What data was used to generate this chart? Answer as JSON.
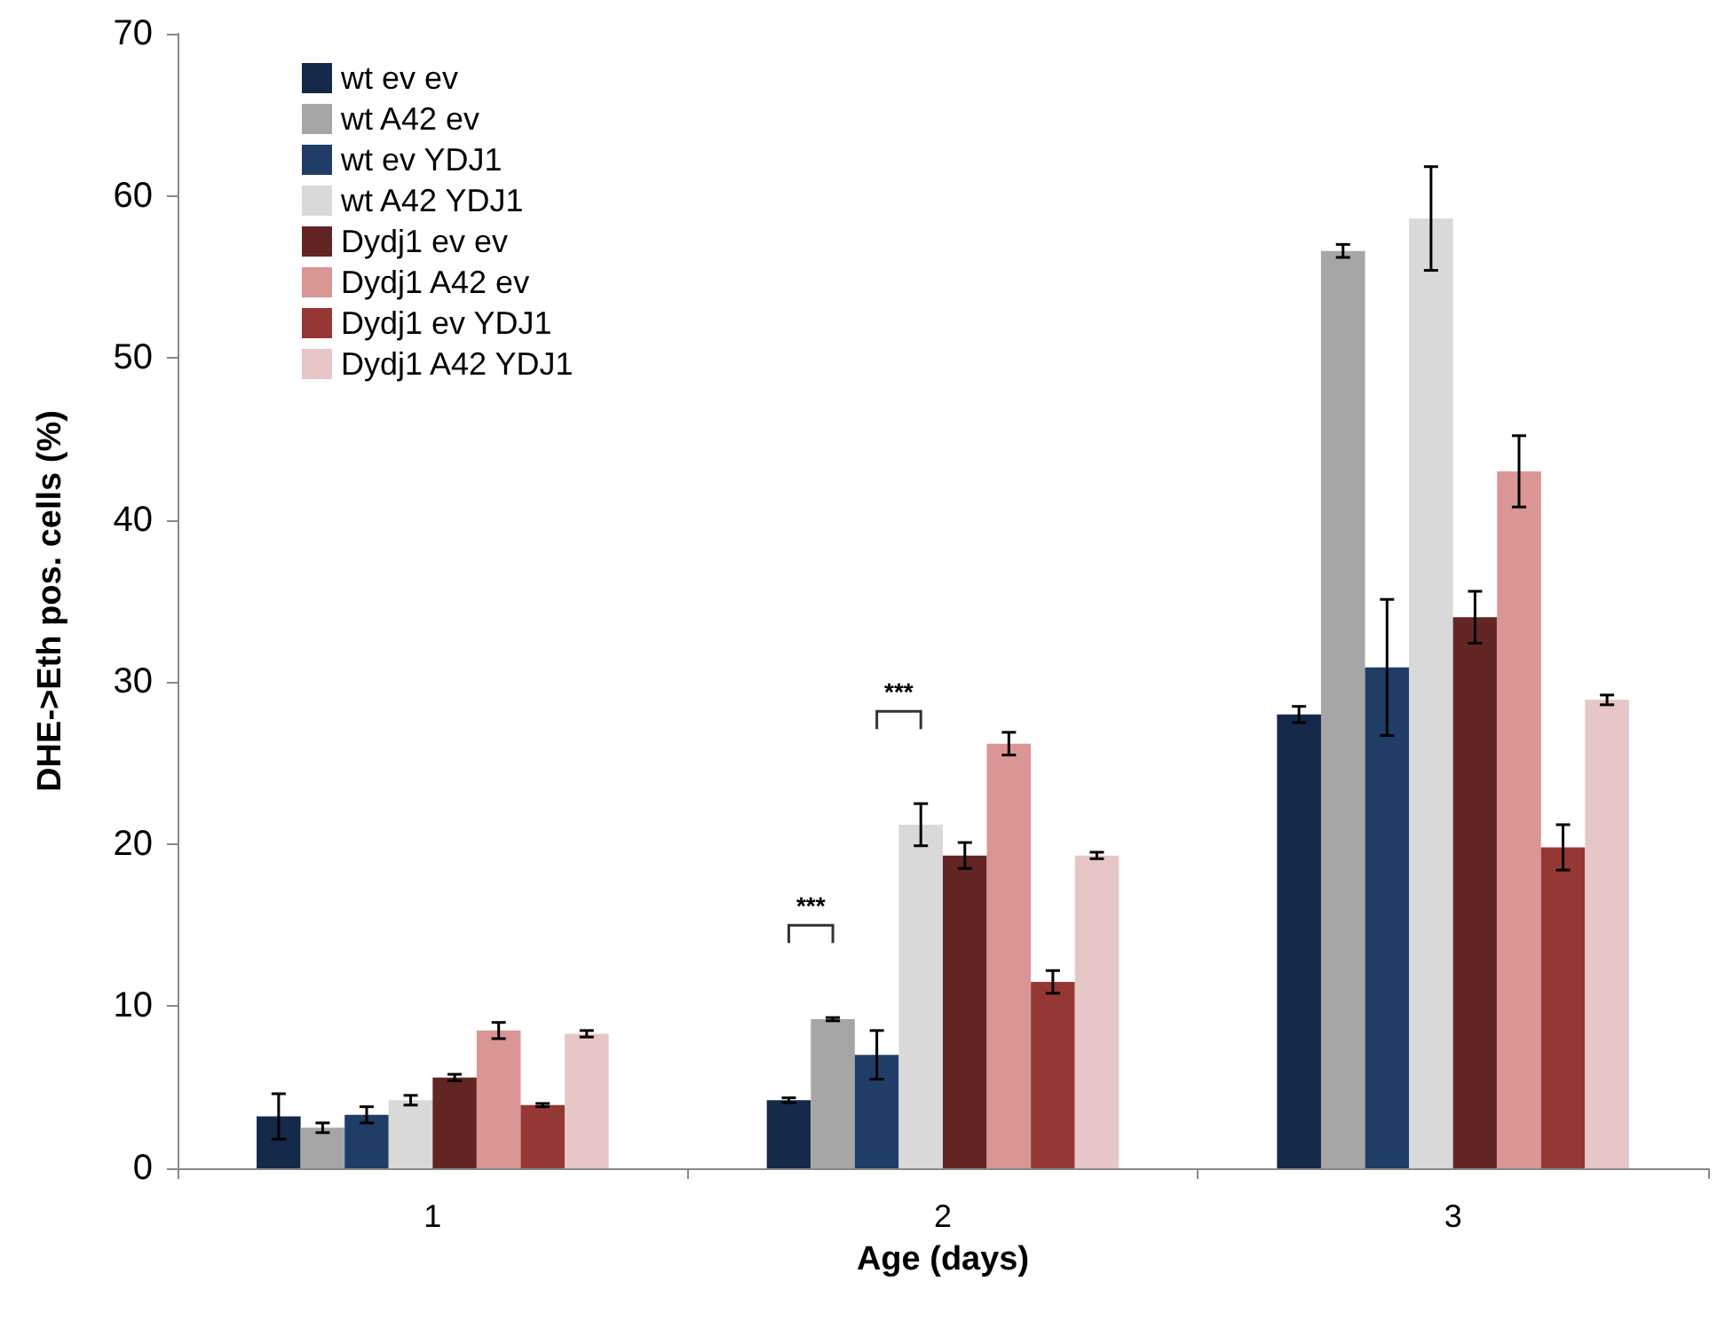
{
  "chart_data": {
    "type": "bar",
    "xlabel": "Age (days)",
    "ylabel": "DHE->Eth pos. cells (%)",
    "categories": [
      "1",
      "2",
      "3"
    ],
    "ylim": [
      0,
      70
    ],
    "yticks": [
      0,
      10,
      20,
      30,
      40,
      50,
      60,
      70
    ],
    "grid": false,
    "legend": "top left",
    "series": [
      {
        "name": "wt ev ev",
        "color": "#14284a",
        "values": [
          3.2,
          4.2,
          28.0
        ],
        "errors": [
          1.4,
          0.15,
          0.5
        ]
      },
      {
        "name": "wt A42 ev",
        "color": "#a6a6a6",
        "values": [
          2.5,
          9.2,
          56.6
        ],
        "errors": [
          0.3,
          0.1,
          0.4
        ]
      },
      {
        "name": "wt ev YDJ1",
        "color": "#1f3d66",
        "values": [
          3.3,
          7.0,
          30.9
        ],
        "errors": [
          0.5,
          1.5,
          4.2
        ]
      },
      {
        "name": "wt A42 YDJ1",
        "color": "#d9d9d9",
        "values": [
          4.2,
          21.2,
          58.6
        ],
        "errors": [
          0.3,
          1.3,
          3.2
        ]
      },
      {
        "name": "Dydj1 ev ev",
        "color": "#632523",
        "values": [
          5.6,
          19.3,
          34.0
        ],
        "errors": [
          0.2,
          0.8,
          1.6
        ]
      },
      {
        "name": "Dydj1 A42 ev",
        "color": "#d99694",
        "values": [
          8.5,
          26.2,
          43.0
        ],
        "errors": [
          0.5,
          0.7,
          2.2
        ]
      },
      {
        "name": "Dydj1 ev YDJ1",
        "color": "#953735",
        "values": [
          3.9,
          11.5,
          19.8
        ],
        "errors": [
          0.1,
          0.7,
          1.4
        ]
      },
      {
        "name": "Dydj1 A42 YDJ1",
        "color": "#e6c6c6",
        "values": [
          8.3,
          19.3,
          28.9
        ],
        "errors": [
          0.2,
          0.2,
          0.3
        ]
      }
    ],
    "annotations": [
      "***",
      "***"
    ]
  }
}
